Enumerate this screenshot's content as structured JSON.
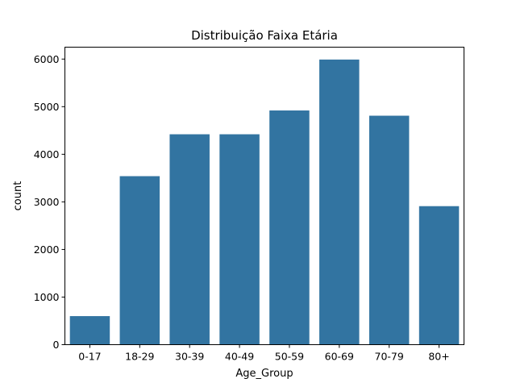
{
  "chart_data": {
    "type": "bar",
    "title": "Distribuição Faixa Etária",
    "xlabel": "Age_Group",
    "ylabel": "count",
    "categories": [
      "0-17",
      "18-29",
      "30-39",
      "40-49",
      "50-59",
      "60-69",
      "70-79",
      "80+"
    ],
    "values": [
      600,
      3540,
      4420,
      4420,
      4920,
      5990,
      4810,
      2910
    ],
    "ylim": [
      0,
      6250
    ],
    "yticks": [
      0,
      1000,
      2000,
      3000,
      4000,
      5000,
      6000
    ],
    "grid": false,
    "bar_color": "#3274a1"
  }
}
